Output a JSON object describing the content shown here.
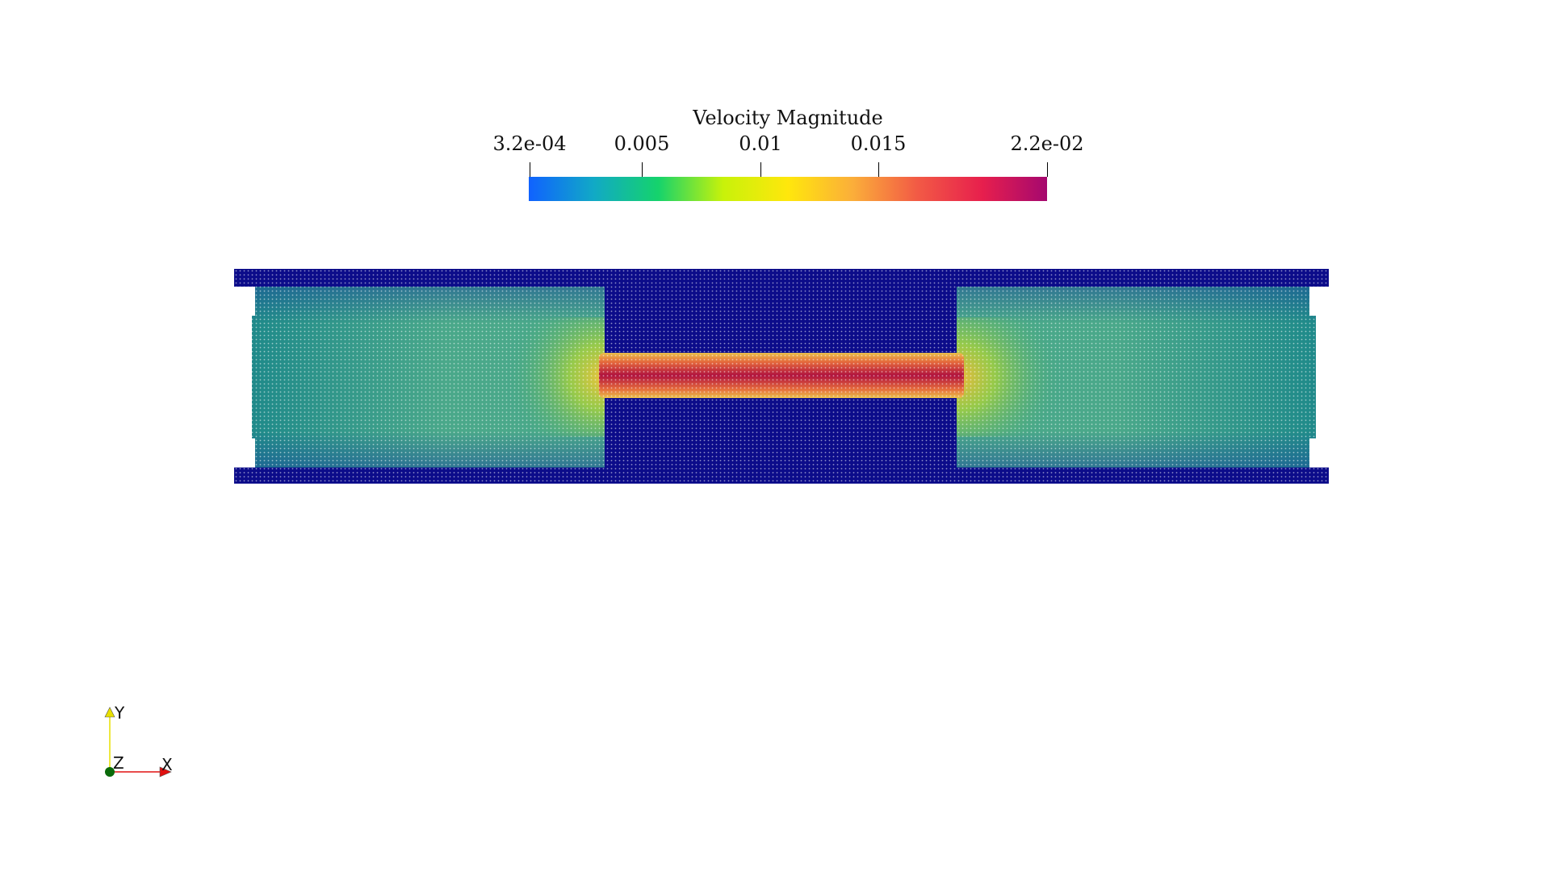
{
  "scalar_bar": {
    "title": "Velocity Magnitude",
    "range": [
      0.00032,
      0.022
    ],
    "ticks": [
      {
        "value": 0.00032,
        "label": "3.2e-04"
      },
      {
        "value": 0.005,
        "label": "0.005"
      },
      {
        "value": 0.01,
        "label": "0.01"
      },
      {
        "value": 0.015,
        "label": "0.015"
      },
      {
        "value": 0.022,
        "label": "2.2e-02"
      }
    ],
    "colormap": [
      "#1062ff",
      "#11a9c6",
      "#15d36c",
      "#c8f20a",
      "#ffe70c",
      "#fbae3a",
      "#f25a45",
      "#e71f4d",
      "#a5086f"
    ]
  },
  "orientation_axes": {
    "labels": {
      "x": "X",
      "y": "Y",
      "z": "Z"
    },
    "colors": {
      "x": "#e01010",
      "y": "#e8e000",
      "z": "#0a6a0a"
    }
  },
  "scene": {
    "wall_color": "#0c0c8a",
    "channel_colors": {
      "inlet_outlet": "#1f8a8a",
      "inlet_center": "#4aa88a",
      "jet_edge": "#e9c04a",
      "jet_core": "#b0123e"
    }
  }
}
